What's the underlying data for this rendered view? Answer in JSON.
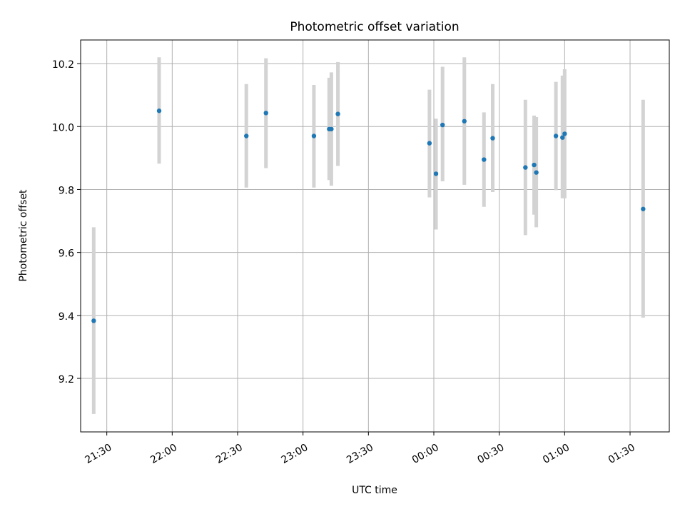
{
  "chart_data": {
    "type": "scatter",
    "title": "Photometric offset variation",
    "xlabel": "UTC time",
    "ylabel": "Photometric offset",
    "grid": true,
    "ylim": [
      9.03,
      10.275
    ],
    "xlim": [
      "21:18",
      "01:48"
    ],
    "yticks": [
      9.2,
      9.4,
      9.6,
      9.8,
      10.0,
      10.2
    ],
    "ytick_labels": [
      "9.2",
      "9.4",
      "9.6",
      "9.8",
      "10.0",
      "10.2"
    ],
    "xticks": [
      "21:30",
      "22:00",
      "22:30",
      "23:00",
      "23:30",
      "00:00",
      "00:30",
      "01:00",
      "01:30"
    ],
    "xtick_labels": [
      "21:30",
      "22:00",
      "22:30",
      "23:00",
      "23:30",
      "00:00",
      "00:30",
      "01:00",
      "01:30"
    ],
    "colors": {
      "point": "#1f77b4",
      "errorbar": "#d3d3d3",
      "grid": "#b0b0b0"
    },
    "series": [
      {
        "points": [
          {
            "x": "21:24",
            "y": 9.383,
            "ylo": 9.087,
            "yhi": 9.68
          },
          {
            "x": "21:54",
            "y": 10.05,
            "ylo": 9.882,
            "yhi": 10.22
          },
          {
            "x": "22:34",
            "y": 9.97,
            "ylo": 9.806,
            "yhi": 10.135
          },
          {
            "x": "22:43",
            "y": 10.043,
            "ylo": 9.868,
            "yhi": 10.217
          },
          {
            "x": "23:05",
            "y": 9.97,
            "ylo": 9.806,
            "yhi": 10.132
          },
          {
            "x": "23:12",
            "y": 9.992,
            "ylo": 9.83,
            "yhi": 10.155
          },
          {
            "x": "23:13",
            "y": 9.992,
            "ylo": 9.812,
            "yhi": 10.172
          },
          {
            "x": "23:16",
            "y": 10.04,
            "ylo": 9.875,
            "yhi": 10.205
          },
          {
            "x": "23:58",
            "y": 9.947,
            "ylo": 9.775,
            "yhi": 10.117
          },
          {
            "x": "00:01",
            "y": 9.85,
            "ylo": 9.673,
            "yhi": 10.025
          },
          {
            "x": "00:04",
            "y": 10.005,
            "ylo": 9.826,
            "yhi": 10.19
          },
          {
            "x": "00:14",
            "y": 10.017,
            "ylo": 9.815,
            "yhi": 10.22
          },
          {
            "x": "00:23",
            "y": 9.895,
            "ylo": 9.745,
            "yhi": 10.045
          },
          {
            "x": "00:27",
            "y": 9.963,
            "ylo": 9.792,
            "yhi": 10.135
          },
          {
            "x": "00:42",
            "y": 9.87,
            "ylo": 9.655,
            "yhi": 10.085
          },
          {
            "x": "00:46",
            "y": 9.878,
            "ylo": 9.72,
            "yhi": 10.035
          },
          {
            "x": "00:47",
            "y": 9.854,
            "ylo": 9.68,
            "yhi": 10.03
          },
          {
            "x": "00:56",
            "y": 9.97,
            "ylo": 9.798,
            "yhi": 10.142
          },
          {
            "x": "00:59",
            "y": 9.965,
            "ylo": 9.772,
            "yhi": 10.162
          },
          {
            "x": "01:00",
            "y": 9.977,
            "ylo": 9.772,
            "yhi": 10.182
          },
          {
            "x": "01:36",
            "y": 9.738,
            "ylo": 9.393,
            "yhi": 10.085
          }
        ]
      }
    ]
  }
}
